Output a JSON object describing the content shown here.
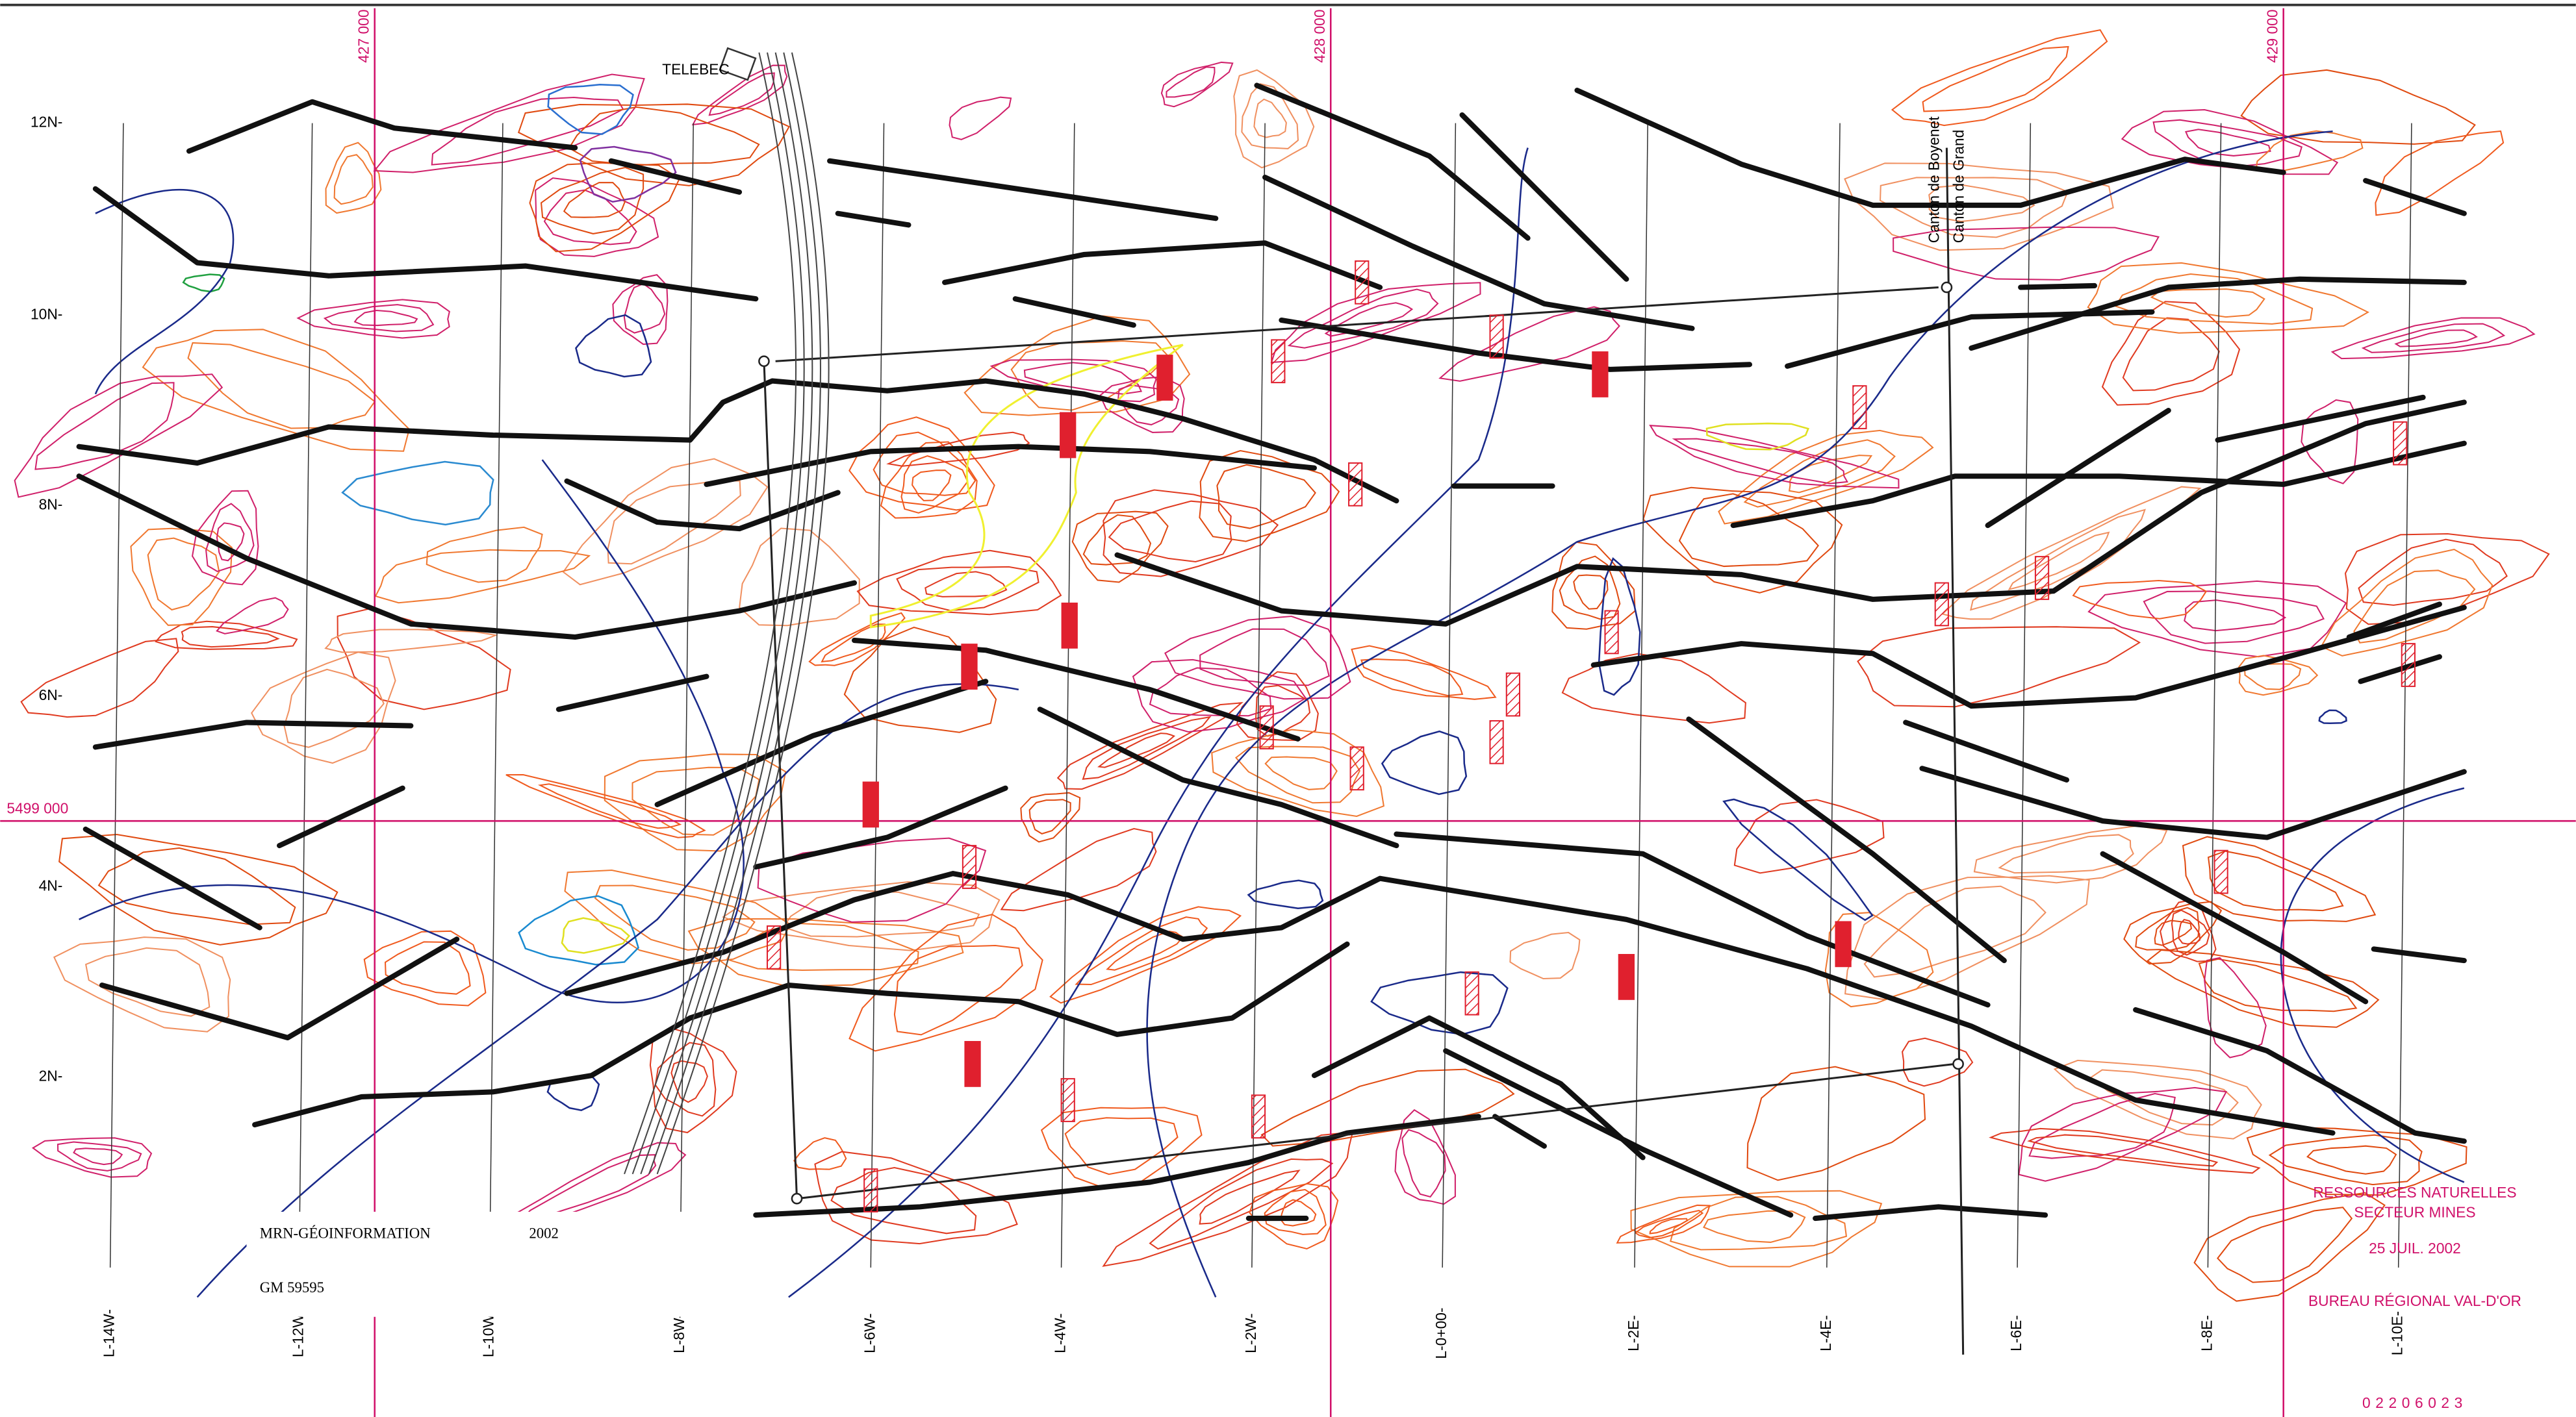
{
  "grid_labels": {
    "easting": [
      "427 000",
      "428 000",
      "429 000"
    ],
    "northing": "5499 000"
  },
  "y_labels": [
    "12N-",
    "10N-",
    "8N-",
    "6N-",
    "4N-",
    "2N-"
  ],
  "line_labels": [
    "L-14W-",
    "L-12W-",
    "L-10W-",
    "L-8W-",
    "L-6W-",
    "L-4W-",
    "L-2W-",
    "L-0+00-",
    "L-2E-",
    "L-4E-",
    "L-6E-",
    "L-8E-",
    "L-10E-"
  ],
  "annotations": {
    "telebec": "TELEBEC",
    "canton_1": "Canton de Boyenet",
    "canton_2": "Canton de Grand"
  },
  "label_box": {
    "agency": "MRN-GÉOINFORMATION",
    "year": "2002",
    "document": "GM 59595"
  },
  "stamp": {
    "line_1": "RESSOURCES NATURELLES",
    "line_2": "SECTEUR MINES",
    "date": "25 JUIL. 2002",
    "office": "BUREAU RÉGIONAL VAL-D'OR",
    "number": "02206023"
  }
}
